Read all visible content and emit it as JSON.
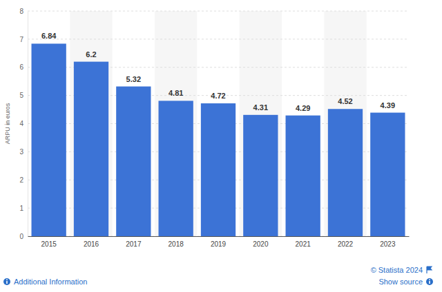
{
  "chart_data": {
    "type": "bar",
    "y_label": "ARPU in euros",
    "categories": [
      "2015",
      "2016",
      "2017",
      "2018",
      "2019",
      "2020",
      "2021",
      "2022",
      "2023"
    ],
    "values": [
      6.84,
      6.2,
      5.32,
      4.81,
      4.72,
      4.31,
      4.29,
      4.52,
      4.39
    ],
    "color": "#3c73d6",
    "ylim": [
      0,
      8
    ],
    "yticks": [
      0,
      1,
      2,
      3,
      4,
      5,
      6,
      7,
      8
    ],
    "grid": true,
    "data_labels": true,
    "annotations": [
      "© Statista 2024",
      "Additional Information",
      "Show source"
    ]
  }
}
